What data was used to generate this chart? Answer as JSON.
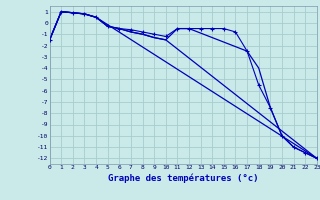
{
  "xlabel": "Graphe des températures (°c)",
  "background_color": "#caeaea",
  "grid_color": "#a8cccc",
  "line_color": "#0000bb",
  "xlim": [
    0,
    23
  ],
  "ylim": [
    -12.5,
    1.5
  ],
  "yticks": [
    1,
    0,
    -1,
    -2,
    -3,
    -4,
    -5,
    -6,
    -7,
    -8,
    -9,
    -10,
    -11,
    -12
  ],
  "xticks": [
    0,
    1,
    2,
    3,
    4,
    5,
    6,
    7,
    8,
    9,
    10,
    11,
    12,
    13,
    14,
    15,
    16,
    17,
    18,
    19,
    20,
    21,
    22,
    23
  ],
  "lines": [
    {
      "x": [
        0,
        1,
        2,
        3,
        4,
        5,
        6,
        7,
        8,
        9,
        10,
        11,
        12,
        13,
        14,
        15,
        16,
        17,
        18,
        19,
        20,
        21,
        22,
        23
      ],
      "y": [
        -1.5,
        1.0,
        0.9,
        0.8,
        0.5,
        -0.3,
        -0.5,
        -0.6,
        -0.8,
        -1.0,
        -1.2,
        -0.5,
        -0.5,
        -0.5,
        -0.5,
        -0.5,
        -0.8,
        -2.5,
        -5.5,
        -7.5,
        -10.0,
        -11.0,
        -11.5,
        -12.0
      ],
      "marker": "+"
    },
    {
      "x": [
        0,
        1,
        2,
        3,
        4,
        23
      ],
      "y": [
        -1.5,
        1.0,
        0.9,
        0.8,
        0.5,
        -12.0
      ],
      "marker": null
    },
    {
      "x": [
        0,
        1,
        2,
        3,
        4,
        5,
        6,
        7,
        8,
        9,
        10,
        23
      ],
      "y": [
        -1.5,
        1.0,
        0.9,
        0.8,
        0.5,
        -0.3,
        -0.5,
        -0.8,
        -1.0,
        -1.3,
        -1.5,
        -12.0
      ],
      "marker": null
    },
    {
      "x": [
        0,
        1,
        2,
        3,
        4,
        5,
        6,
        7,
        8,
        9,
        10,
        11,
        12,
        17,
        18,
        19,
        20,
        21,
        22,
        23
      ],
      "y": [
        -1.5,
        1.0,
        0.9,
        0.8,
        0.5,
        -0.3,
        -0.5,
        -0.8,
        -1.0,
        -1.3,
        -1.5,
        -0.5,
        -0.5,
        -2.5,
        -4.0,
        -7.5,
        -10.0,
        -11.0,
        -11.5,
        -12.0
      ],
      "marker": null
    }
  ]
}
